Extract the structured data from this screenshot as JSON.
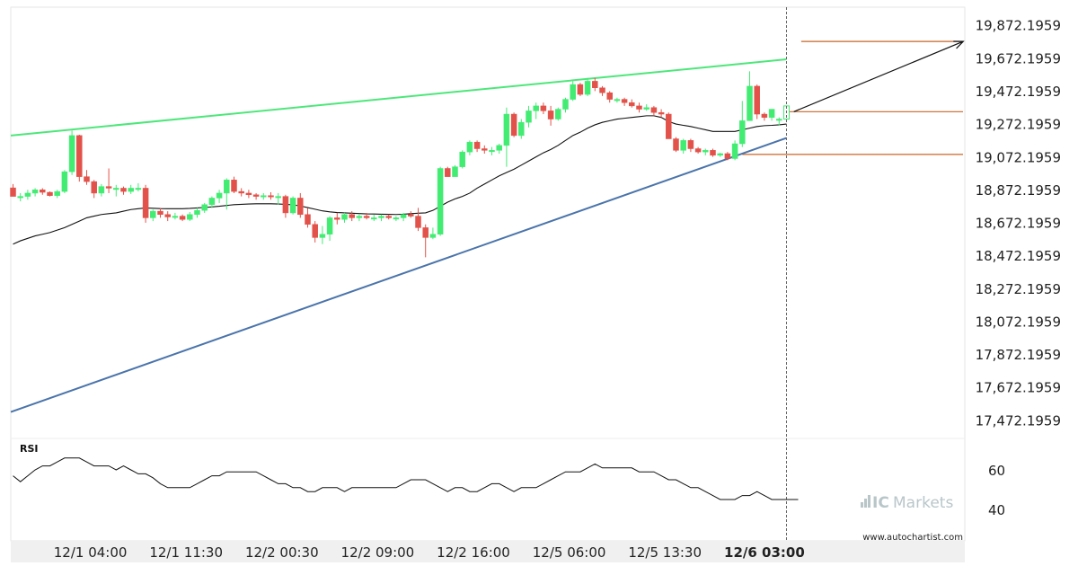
{
  "chart_data": {
    "type": "candlestick",
    "instrument_price_axis": {
      "ticks": [
        "19,872.1959",
        "19,672.1959",
        "19,472.1959",
        "19,272.1959",
        "19,072.1959",
        "18,872.1959",
        "18,672.1959",
        "18,472.1959",
        "18,272.1959",
        "18,072.1959",
        "17,872.1959",
        "17,672.1959",
        "17,472.1959"
      ],
      "ylim": [
        17370,
        19980
      ]
    },
    "x_axis": {
      "ticks": [
        {
          "label": "12/1 04:00",
          "index": 10.5,
          "bold": false
        },
        {
          "label": "12/1 11:30",
          "index": 23.5,
          "bold": false
        },
        {
          "label": "12/2 00:30",
          "index": 36.5,
          "bold": false
        },
        {
          "label": "12/2 09:00",
          "index": 49.5,
          "bold": false
        },
        {
          "label": "12/2 16:00",
          "index": 62.5,
          "bold": false
        },
        {
          "label": "12/5 06:00",
          "index": 75.5,
          "bold": false
        },
        {
          "label": "12/5 13:30",
          "index": 88.5,
          "bold": false
        },
        {
          "label": "12/6 03:00",
          "index": 102,
          "bold": true
        }
      ]
    },
    "candles": [
      [
        18882,
        18905,
        18840,
        18830
      ],
      [
        18830,
        18850,
        18800,
        18830
      ],
      [
        18830,
        18870,
        18810,
        18850
      ],
      [
        18850,
        18880,
        18830,
        18870
      ],
      [
        18870,
        18880,
        18840,
        18855
      ],
      [
        18855,
        18860,
        18830,
        18835
      ],
      [
        18835,
        18870,
        18820,
        18860
      ],
      [
        18860,
        18990,
        18850,
        18980
      ],
      [
        18980,
        19230,
        18960,
        19200
      ],
      [
        19200,
        19205,
        18920,
        18950
      ],
      [
        18950,
        18990,
        18900,
        18920
      ],
      [
        18920,
        18930,
        18820,
        18850
      ],
      [
        18850,
        18905,
        18830,
        18890
      ],
      [
        18890,
        19000,
        18850,
        18880
      ],
      [
        18880,
        18900,
        18830,
        18880
      ],
      [
        18880,
        18890,
        18840,
        18860
      ],
      [
        18860,
        18900,
        18845,
        18880
      ],
      [
        18880,
        18910,
        18860,
        18880
      ],
      [
        18880,
        18900,
        18670,
        18700
      ],
      [
        18700,
        18750,
        18680,
        18740
      ],
      [
        18740,
        18760,
        18700,
        18720
      ],
      [
        18720,
        18740,
        18680,
        18705
      ],
      [
        18705,
        18730,
        18690,
        18710
      ],
      [
        18710,
        18720,
        18680,
        18690
      ],
      [
        18690,
        18735,
        18680,
        18720
      ],
      [
        18720,
        18760,
        18700,
        18745
      ],
      [
        18745,
        18790,
        18730,
        18780
      ],
      [
        18780,
        18830,
        18760,
        18820
      ],
      [
        18820,
        18870,
        18790,
        18850
      ],
      [
        18850,
        18940,
        18750,
        18930
      ],
      [
        18930,
        18950,
        18850,
        18860
      ],
      [
        18860,
        18880,
        18830,
        18850
      ],
      [
        18850,
        18870,
        18820,
        18840
      ],
      [
        18840,
        18850,
        18810,
        18830
      ],
      [
        18830,
        18850,
        18810,
        18835
      ],
      [
        18835,
        18855,
        18810,
        18830
      ],
      [
        18830,
        18850,
        18780,
        18830
      ],
      [
        18830,
        18840,
        18700,
        18730
      ],
      [
        18730,
        18830,
        18720,
        18820
      ],
      [
        18820,
        18850,
        18700,
        18720
      ],
      [
        18720,
        18760,
        18640,
        18660
      ],
      [
        18660,
        18680,
        18550,
        18580
      ],
      [
        18580,
        18650,
        18540,
        18600
      ],
      [
        18600,
        18710,
        18560,
        18700
      ],
      [
        18700,
        18730,
        18660,
        18690
      ],
      [
        18690,
        18730,
        18670,
        18720
      ],
      [
        18720,
        18740,
        18680,
        18700
      ],
      [
        18700,
        18720,
        18680,
        18710
      ],
      [
        18710,
        18730,
        18690,
        18700
      ],
      [
        18700,
        18720,
        18680,
        18700
      ],
      [
        18700,
        18720,
        18680,
        18710
      ],
      [
        18710,
        18720,
        18690,
        18700
      ],
      [
        18700,
        18710,
        18680,
        18700
      ],
      [
        18700,
        18730,
        18680,
        18720
      ],
      [
        18720,
        18740,
        18700,
        18710
      ],
      [
        18710,
        18760,
        18620,
        18640
      ],
      [
        18640,
        18660,
        18460,
        18580
      ],
      [
        18580,
        18640,
        18570,
        18600
      ],
      [
        18600,
        19010,
        18590,
        19000
      ],
      [
        19000,
        19010,
        18950,
        18950
      ],
      [
        18950,
        19020,
        18950,
        19010
      ],
      [
        19010,
        19110,
        19000,
        19100
      ],
      [
        19100,
        19170,
        19080,
        19160
      ],
      [
        19160,
        19170,
        19100,
        19120
      ],
      [
        19120,
        19140,
        19090,
        19110
      ],
      [
        19110,
        19130,
        19080,
        19110
      ],
      [
        19110,
        19150,
        19090,
        19140
      ],
      [
        19140,
        19370,
        19010,
        19330
      ],
      [
        19330,
        19340,
        19190,
        19200
      ],
      [
        19200,
        19300,
        19180,
        19280
      ],
      [
        19280,
        19380,
        19250,
        19350
      ],
      [
        19350,
        19400,
        19300,
        19380
      ],
      [
        19380,
        19400,
        19330,
        19350
      ],
      [
        19350,
        19380,
        19260,
        19300
      ],
      [
        19300,
        19370,
        19290,
        19360
      ],
      [
        19360,
        19430,
        19340,
        19420
      ],
      [
        19420,
        19530,
        19410,
        19510
      ],
      [
        19510,
        19520,
        19440,
        19450
      ],
      [
        19450,
        19550,
        19440,
        19530
      ],
      [
        19530,
        19550,
        19470,
        19490
      ],
      [
        19490,
        19500,
        19440,
        19460
      ],
      [
        19460,
        19470,
        19400,
        19420
      ],
      [
        19420,
        19430,
        19400,
        19420
      ],
      [
        19420,
        19430,
        19380,
        19400
      ],
      [
        19400,
        19420,
        19370,
        19380
      ],
      [
        19380,
        19400,
        19340,
        19360
      ],
      [
        19360,
        19390,
        19350,
        19370
      ],
      [
        19370,
        19380,
        19320,
        19340
      ],
      [
        19340,
        19360,
        19310,
        19330
      ],
      [
        19330,
        19340,
        19190,
        19180
      ],
      [
        19180,
        19190,
        19100,
        19110
      ],
      [
        19110,
        19180,
        19090,
        19170
      ],
      [
        19170,
        19180,
        19100,
        19120
      ],
      [
        19120,
        19130,
        19090,
        19100
      ],
      [
        19100,
        19120,
        19080,
        19110
      ],
      [
        19110,
        19120,
        19070,
        19080
      ],
      [
        19080,
        19095,
        19070,
        19090
      ],
      [
        19090,
        19100,
        19050,
        19060
      ],
      [
        19060,
        19170,
        19050,
        19150
      ],
      [
        19150,
        19410,
        19130,
        19290
      ],
      [
        19290,
        19590,
        19290,
        19500
      ],
      [
        19500,
        19510,
        19300,
        19330
      ],
      [
        19330,
        19340,
        19290,
        19310
      ],
      [
        19310,
        19360,
        19290,
        19360
      ],
      [
        19300,
        19310,
        19260,
        19300
      ],
      [
        19300,
        19380,
        19300,
        19380
      ]
    ],
    "moving_average": [
      18540,
      18560,
      18575,
      18590,
      18600,
      18610,
      18625,
      18640,
      18660,
      18680,
      18700,
      18710,
      18720,
      18725,
      18730,
      18740,
      18750,
      18755,
      18760,
      18758,
      18756,
      18755,
      18755,
      18755,
      18757,
      18760,
      18763,
      18766,
      18770,
      18775,
      18780,
      18782,
      18784,
      18785,
      18785,
      18785,
      18784,
      18782,
      18779,
      18772,
      18762,
      18752,
      18742,
      18736,
      18732,
      18730,
      18728,
      18726,
      18724,
      18723,
      18722,
      18721,
      18720,
      18722,
      18725,
      18728,
      18730,
      18745,
      18770,
      18795,
      18815,
      18830,
      18850,
      18880,
      18905,
      18930,
      18955,
      18975,
      18995,
      19020,
      19045,
      19070,
      19095,
      19115,
      19140,
      19170,
      19200,
      19220,
      19245,
      19265,
      19280,
      19290,
      19300,
      19305,
      19310,
      19315,
      19320,
      19320,
      19310,
      19285,
      19270,
      19262,
      19255,
      19245,
      19235,
      19225,
      19225,
      19225,
      19225,
      19235,
      19245,
      19255,
      19260,
      19262,
      19265,
      19270
    ],
    "rsi": {
      "label": "RSI",
      "ticks": [
        "60",
        "40"
      ],
      "ylim": [
        25,
        75
      ],
      "values": [
        57,
        54,
        57,
        60,
        62,
        62,
        64,
        66,
        66,
        66,
        64,
        62,
        62,
        62,
        60,
        62,
        60,
        58,
        58,
        56,
        53,
        51,
        51,
        51,
        51,
        53,
        55,
        57,
        57,
        59,
        59,
        59,
        59,
        59,
        57,
        55,
        53,
        53,
        51,
        51,
        49,
        49,
        51,
        51,
        51,
        49,
        51,
        51,
        51,
        51,
        51,
        51,
        51,
        53,
        55,
        55,
        55,
        53,
        51,
        49,
        51,
        51,
        49,
        49,
        51,
        53,
        53,
        51,
        49,
        51,
        51,
        51,
        53,
        55,
        57,
        59,
        59,
        59,
        61,
        63,
        61,
        61,
        61,
        61,
        61,
        59,
        59,
        59,
        57,
        55,
        55,
        53,
        51,
        51,
        49,
        47,
        45,
        45,
        45,
        47,
        47,
        49,
        47,
        45,
        45,
        45
      ]
    },
    "pattern": {
      "upper_line": {
        "start": [
          0,
          19200
        ],
        "end": [
          105,
          19663
        ]
      },
      "lower_line": {
        "start": [
          0,
          17520
        ],
        "end": [
          105,
          19185
        ]
      },
      "breakout_index": 105,
      "projection_arrow": {
        "start": [
          106,
          19345
        ],
        "end": [
          129,
          19772
        ]
      },
      "levels": [
        {
          "price": 19772,
          "from_index": 107
        },
        {
          "price": 19345,
          "from_index": 105
        },
        {
          "price": 19085,
          "from_index": 99
        }
      ]
    },
    "colors": {
      "bull": "#42ec73",
      "bear": "#e2524a",
      "upper_line": "#4de77a",
      "lower_line": "#4a74ab",
      "level": "#c86426",
      "ma": "#111111",
      "rsi": "#111111",
      "arrow": "#111111"
    }
  },
  "footer": {
    "brand_ic": "IC",
    "brand_markets": "Markets",
    "site": "www.autochartist.com"
  }
}
